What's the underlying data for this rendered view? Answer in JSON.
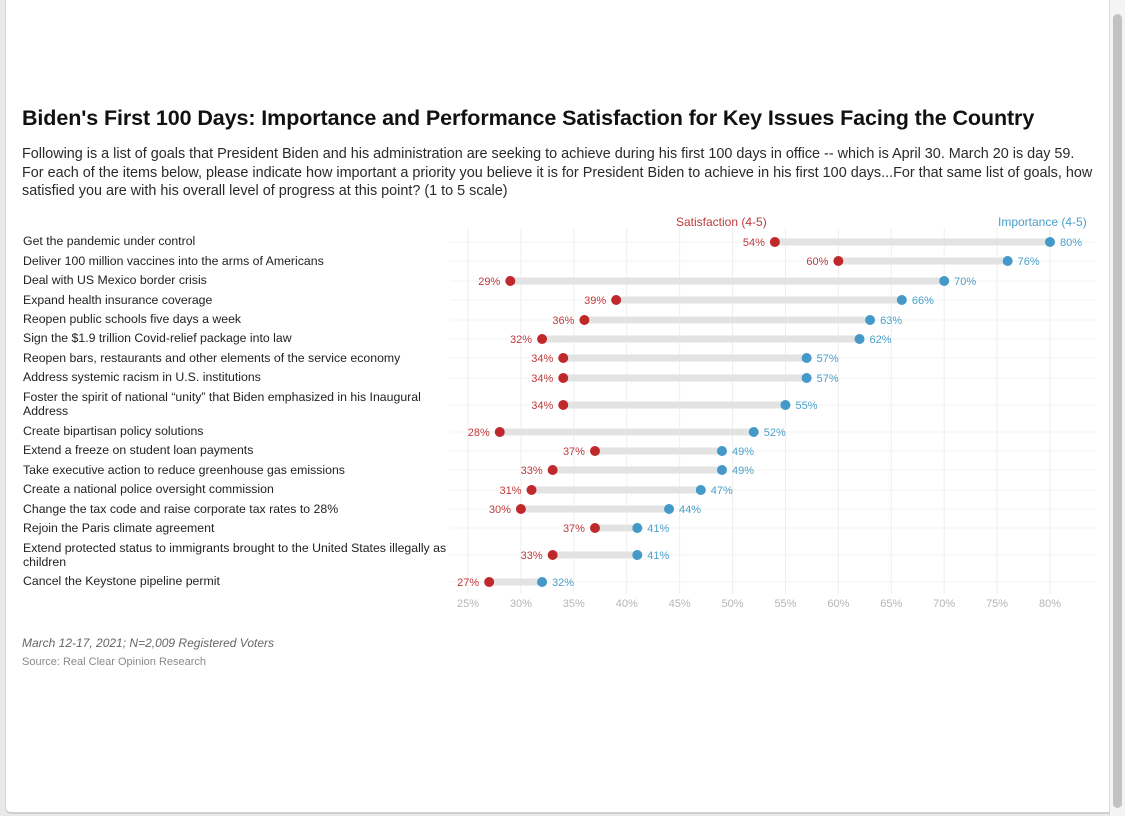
{
  "header": {
    "title": "Biden's First 100 Days: Importance and Performance Satisfaction for Key Issues Facing the Country",
    "subtitle": "Following is a list of goals that President Biden and his administration are seeking to achieve during his first 100 days in office -- which is April 30. March 20 is day 59. For each of the items below, please indicate how important a priority you believe it is for President Biden to achieve in his first 100 days...For that same list of goals, how satisfied you are with his overall level of progress at this point? (1 to 5 scale)"
  },
  "footer": {
    "note": "March 12-17, 2021; N=2,009 Registered Voters",
    "source": "Source: Real Clear Opinion Research"
  },
  "colors": {
    "satisfaction": "#c0292b",
    "importance": "#4499c8",
    "connector": "#e3e3e3",
    "grid": "#eeeeee",
    "tick_text": "#b5b5b5"
  },
  "chart_data": {
    "type": "dumbbell",
    "title": "Biden's First 100 Days: Importance and Performance Satisfaction for Key Issues Facing the Country",
    "xlabel": "",
    "ylabel": "",
    "xlim": [
      25,
      80
    ],
    "x_ticks": [
      "25%",
      "30%",
      "35%",
      "40%",
      "45%",
      "50%",
      "55%",
      "60%",
      "65%",
      "70%",
      "75%",
      "80%"
    ],
    "x_tick_values": [
      25,
      30,
      35,
      40,
      45,
      50,
      55,
      60,
      65,
      70,
      75,
      80
    ],
    "grid": true,
    "legend": [
      {
        "name": "Satisfaction (4-5)",
        "placement": "top-center"
      },
      {
        "name": "Importance (4-5)",
        "placement": "top-right"
      }
    ],
    "categories": [
      "Get the pandemic under control",
      "Deliver 100 million vaccines into the arms of Americans",
      "Deal with US Mexico border crisis",
      "Expand health insurance coverage",
      "Reopen public schools five days a week",
      "Sign the $1.9 trillion Covid-relief package into law",
      "Reopen bars, restaurants and other elements of the service economy",
      "Address systemic racism in U.S. institutions",
      "Foster the spirit of national “unity” that Biden emphasized in his Inaugural Address",
      "Create bipartisan policy solutions",
      "Extend a freeze on student loan payments",
      "Take executive action to reduce greenhouse gas emissions",
      "Create a national police oversight commission",
      "Change the tax code and raise corporate tax rates to 28%",
      "Rejoin the Paris climate agreement",
      "Extend protected status to immigrants brought to the United States illegally as children",
      "Cancel the Keystone pipeline permit"
    ],
    "series": [
      {
        "name": "Satisfaction (4-5)",
        "values": [
          54,
          60,
          29,
          39,
          36,
          32,
          34,
          34,
          34,
          28,
          37,
          33,
          31,
          30,
          37,
          33,
          27
        ]
      },
      {
        "name": "Importance (4-5)",
        "values": [
          80,
          76,
          70,
          66,
          63,
          62,
          57,
          57,
          55,
          52,
          49,
          49,
          47,
          44,
          41,
          41,
          32
        ]
      }
    ]
  }
}
